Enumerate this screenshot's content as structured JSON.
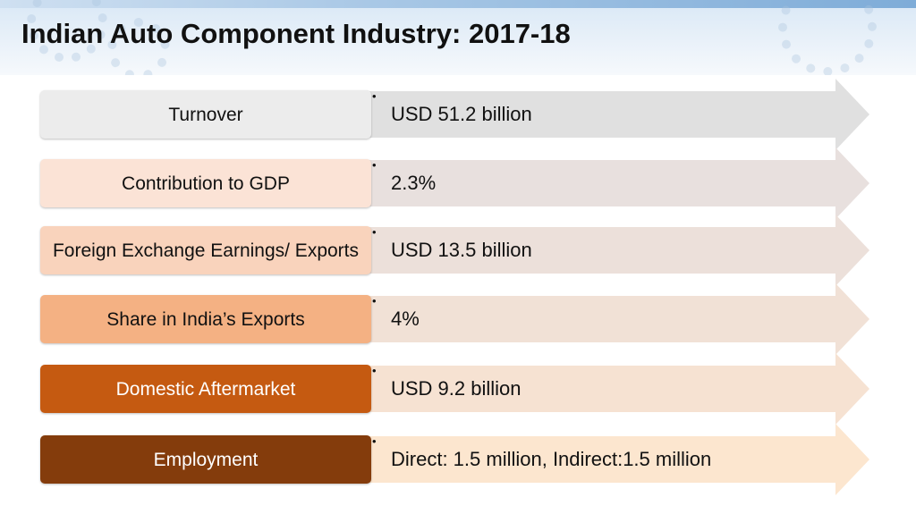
{
  "title": "Indian Auto Component Industry: 2017-18",
  "rows": [
    {
      "label": "Turnover",
      "value": "USD 51.2 billion",
      "box_color": "#ececec",
      "text_color": "#111111",
      "arrow_color": "#e0e0e0"
    },
    {
      "label": "Contribution to GDP",
      "value": "2.3%",
      "box_color": "#fbe3d6",
      "text_color": "#111111",
      "arrow_color": "#e8e0de"
    },
    {
      "label": "Foreign Exchange Earnings/ Exports",
      "value": "USD 13.5 billion",
      "box_color": "#f9d3bc",
      "text_color": "#111111",
      "arrow_color": "#ece0da"
    },
    {
      "label": "Share in India’s Exports",
      "value": "4%",
      "box_color": "#f4b183",
      "text_color": "#111111",
      "arrow_color": "#f1e1d6"
    },
    {
      "label": "Domestic Aftermarket",
      "value": "USD 9.2 billion",
      "box_color": "#c55a11",
      "text_color": "#ffffff",
      "arrow_color": "#f6e2d2"
    },
    {
      "label": "Employment",
      "value": "Direct: 1.5 million, Indirect:1.5 million",
      "box_color": "#843c0c",
      "text_color": "#ffffff",
      "arrow_color": "#fce6cf"
    }
  ],
  "bullet_symbol": "•"
}
